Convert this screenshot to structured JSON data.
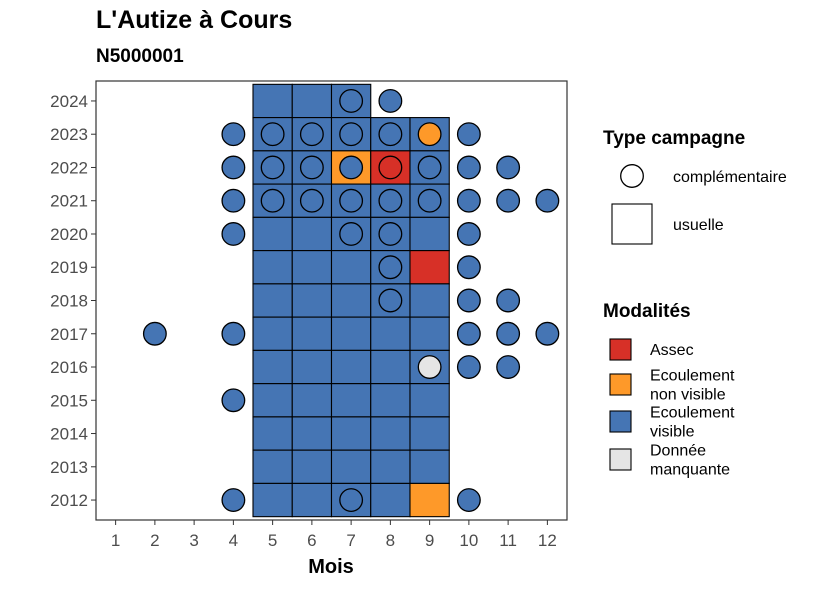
{
  "chart_data": {
    "type": "heatmap",
    "title": "L'Autize à Cours",
    "subtitle": "N5000001",
    "xlabel": "Mois",
    "ylabel": "",
    "x_ticks": [
      1,
      2,
      3,
      4,
      5,
      6,
      7,
      8,
      9,
      10,
      11,
      12
    ],
    "y_ticks": [
      2012,
      2013,
      2014,
      2015,
      2016,
      2017,
      2018,
      2019,
      2020,
      2021,
      2022,
      2023,
      2024
    ],
    "xlim": [
      0.5,
      12.5
    ],
    "ylim": [
      2011.4,
      2024.6
    ],
    "grid": false,
    "legends": {
      "shape": {
        "title": "Type campagne",
        "entries": [
          {
            "label": "complémentaire",
            "shape": "circle"
          },
          {
            "label": "usuelle",
            "shape": "square"
          }
        ]
      },
      "fill": {
        "title": "Modalités",
        "entries": [
          {
            "key": "assec",
            "label_lines": [
              "Assec"
            ],
            "color": "#d73027"
          },
          {
            "key": "ecoulement_non_visible",
            "label_lines": [
              "Ecoulement",
              "non visible"
            ],
            "color": "#fe9929"
          },
          {
            "key": "ecoulement_visible",
            "label_lines": [
              "Ecoulement",
              "visible"
            ],
            "color": "#4575b4"
          },
          {
            "key": "donnee_manquante",
            "label_lines": [
              "Donnée",
              "manquante"
            ],
            "color": "#e5e5e5"
          }
        ]
      }
    },
    "usuelle": [
      {
        "month": 5,
        "year": 2024,
        "modalite": "ecoulement_visible"
      },
      {
        "month": 6,
        "year": 2024,
        "modalite": "ecoulement_visible"
      },
      {
        "month": 7,
        "year": 2024,
        "modalite": "ecoulement_visible"
      },
      {
        "month": 5,
        "year": 2023,
        "modalite": "ecoulement_visible"
      },
      {
        "month": 6,
        "year": 2023,
        "modalite": "ecoulement_visible"
      },
      {
        "month": 7,
        "year": 2023,
        "modalite": "ecoulement_visible"
      },
      {
        "month": 8,
        "year": 2023,
        "modalite": "ecoulement_visible"
      },
      {
        "month": 9,
        "year": 2023,
        "modalite": "ecoulement_visible"
      },
      {
        "month": 5,
        "year": 2022,
        "modalite": "ecoulement_visible"
      },
      {
        "month": 6,
        "year": 2022,
        "modalite": "ecoulement_visible"
      },
      {
        "month": 7,
        "year": 2022,
        "modalite": "ecoulement_non_visible"
      },
      {
        "month": 8,
        "year": 2022,
        "modalite": "assec"
      },
      {
        "month": 9,
        "year": 2022,
        "modalite": "ecoulement_visible"
      },
      {
        "month": 5,
        "year": 2021,
        "modalite": "ecoulement_visible"
      },
      {
        "month": 6,
        "year": 2021,
        "modalite": "ecoulement_visible"
      },
      {
        "month": 7,
        "year": 2021,
        "modalite": "ecoulement_visible"
      },
      {
        "month": 8,
        "year": 2021,
        "modalite": "ecoulement_visible"
      },
      {
        "month": 9,
        "year": 2021,
        "modalite": "ecoulement_visible"
      },
      {
        "month": 5,
        "year": 2020,
        "modalite": "ecoulement_visible"
      },
      {
        "month": 6,
        "year": 2020,
        "modalite": "ecoulement_visible"
      },
      {
        "month": 7,
        "year": 2020,
        "modalite": "ecoulement_visible"
      },
      {
        "month": 8,
        "year": 2020,
        "modalite": "ecoulement_visible"
      },
      {
        "month": 9,
        "year": 2020,
        "modalite": "ecoulement_visible"
      },
      {
        "month": 5,
        "year": 2019,
        "modalite": "ecoulement_visible"
      },
      {
        "month": 6,
        "year": 2019,
        "modalite": "ecoulement_visible"
      },
      {
        "month": 7,
        "year": 2019,
        "modalite": "ecoulement_visible"
      },
      {
        "month": 8,
        "year": 2019,
        "modalite": "ecoulement_visible"
      },
      {
        "month": 9,
        "year": 2019,
        "modalite": "assec"
      },
      {
        "month": 5,
        "year": 2018,
        "modalite": "ecoulement_visible"
      },
      {
        "month": 6,
        "year": 2018,
        "modalite": "ecoulement_visible"
      },
      {
        "month": 7,
        "year": 2018,
        "modalite": "ecoulement_visible"
      },
      {
        "month": 8,
        "year": 2018,
        "modalite": "ecoulement_visible"
      },
      {
        "month": 9,
        "year": 2018,
        "modalite": "ecoulement_visible"
      },
      {
        "month": 5,
        "year": 2017,
        "modalite": "ecoulement_visible"
      },
      {
        "month": 6,
        "year": 2017,
        "modalite": "ecoulement_visible"
      },
      {
        "month": 7,
        "year": 2017,
        "modalite": "ecoulement_visible"
      },
      {
        "month": 8,
        "year": 2017,
        "modalite": "ecoulement_visible"
      },
      {
        "month": 9,
        "year": 2017,
        "modalite": "ecoulement_visible"
      },
      {
        "month": 5,
        "year": 2016,
        "modalite": "ecoulement_visible"
      },
      {
        "month": 6,
        "year": 2016,
        "modalite": "ecoulement_visible"
      },
      {
        "month": 7,
        "year": 2016,
        "modalite": "ecoulement_visible"
      },
      {
        "month": 8,
        "year": 2016,
        "modalite": "ecoulement_visible"
      },
      {
        "month": 9,
        "year": 2016,
        "modalite": "ecoulement_visible"
      },
      {
        "month": 5,
        "year": 2015,
        "modalite": "ecoulement_visible"
      },
      {
        "month": 6,
        "year": 2015,
        "modalite": "ecoulement_visible"
      },
      {
        "month": 7,
        "year": 2015,
        "modalite": "ecoulement_visible"
      },
      {
        "month": 8,
        "year": 2015,
        "modalite": "ecoulement_visible"
      },
      {
        "month": 9,
        "year": 2015,
        "modalite": "ecoulement_visible"
      },
      {
        "month": 5,
        "year": 2014,
        "modalite": "ecoulement_visible"
      },
      {
        "month": 6,
        "year": 2014,
        "modalite": "ecoulement_visible"
      },
      {
        "month": 7,
        "year": 2014,
        "modalite": "ecoulement_visible"
      },
      {
        "month": 8,
        "year": 2014,
        "modalite": "ecoulement_visible"
      },
      {
        "month": 9,
        "year": 2014,
        "modalite": "ecoulement_visible"
      },
      {
        "month": 5,
        "year": 2013,
        "modalite": "ecoulement_visible"
      },
      {
        "month": 6,
        "year": 2013,
        "modalite": "ecoulement_visible"
      },
      {
        "month": 7,
        "year": 2013,
        "modalite": "ecoulement_visible"
      },
      {
        "month": 8,
        "year": 2013,
        "modalite": "ecoulement_visible"
      },
      {
        "month": 9,
        "year": 2013,
        "modalite": "ecoulement_visible"
      },
      {
        "month": 5,
        "year": 2012,
        "modalite": "ecoulement_visible"
      },
      {
        "month": 6,
        "year": 2012,
        "modalite": "ecoulement_visible"
      },
      {
        "month": 7,
        "year": 2012,
        "modalite": "ecoulement_visible"
      },
      {
        "month": 8,
        "year": 2012,
        "modalite": "ecoulement_visible"
      },
      {
        "month": 9,
        "year": 2012,
        "modalite": "ecoulement_non_visible"
      }
    ],
    "complementaire": [
      {
        "month": 7,
        "year": 2024,
        "modalite": "ecoulement_visible"
      },
      {
        "month": 8,
        "year": 2024,
        "modalite": "ecoulement_visible"
      },
      {
        "month": 4,
        "year": 2023,
        "modalite": "ecoulement_visible"
      },
      {
        "month": 5,
        "year": 2023,
        "modalite": "ecoulement_visible"
      },
      {
        "month": 6,
        "year": 2023,
        "modalite": "ecoulement_visible"
      },
      {
        "month": 7,
        "year": 2023,
        "modalite": "ecoulement_visible"
      },
      {
        "month": 8,
        "year": 2023,
        "modalite": "ecoulement_visible"
      },
      {
        "month": 9,
        "year": 2023,
        "modalite": "ecoulement_non_visible"
      },
      {
        "month": 10,
        "year": 2023,
        "modalite": "ecoulement_visible"
      },
      {
        "month": 4,
        "year": 2022,
        "modalite": "ecoulement_visible"
      },
      {
        "month": 5,
        "year": 2022,
        "modalite": "ecoulement_visible"
      },
      {
        "month": 6,
        "year": 2022,
        "modalite": "ecoulement_visible"
      },
      {
        "month": 7,
        "year": 2022,
        "modalite": "ecoulement_visible"
      },
      {
        "month": 8,
        "year": 2022,
        "modalite": "assec"
      },
      {
        "month": 9,
        "year": 2022,
        "modalite": "ecoulement_visible"
      },
      {
        "month": 10,
        "year": 2022,
        "modalite": "ecoulement_visible"
      },
      {
        "month": 11,
        "year": 2022,
        "modalite": "ecoulement_visible"
      },
      {
        "month": 4,
        "year": 2021,
        "modalite": "ecoulement_visible"
      },
      {
        "month": 5,
        "year": 2021,
        "modalite": "ecoulement_visible"
      },
      {
        "month": 6,
        "year": 2021,
        "modalite": "ecoulement_visible"
      },
      {
        "month": 7,
        "year": 2021,
        "modalite": "ecoulement_visible"
      },
      {
        "month": 8,
        "year": 2021,
        "modalite": "ecoulement_visible"
      },
      {
        "month": 9,
        "year": 2021,
        "modalite": "ecoulement_visible"
      },
      {
        "month": 10,
        "year": 2021,
        "modalite": "ecoulement_visible"
      },
      {
        "month": 11,
        "year": 2021,
        "modalite": "ecoulement_visible"
      },
      {
        "month": 12,
        "year": 2021,
        "modalite": "ecoulement_visible"
      },
      {
        "month": 4,
        "year": 2020,
        "modalite": "ecoulement_visible"
      },
      {
        "month": 7,
        "year": 2020,
        "modalite": "ecoulement_visible"
      },
      {
        "month": 8,
        "year": 2020,
        "modalite": "ecoulement_visible"
      },
      {
        "month": 10,
        "year": 2020,
        "modalite": "ecoulement_visible"
      },
      {
        "month": 8,
        "year": 2019,
        "modalite": "ecoulement_visible"
      },
      {
        "month": 10,
        "year": 2019,
        "modalite": "ecoulement_visible"
      },
      {
        "month": 8,
        "year": 2018,
        "modalite": "ecoulement_visible"
      },
      {
        "month": 10,
        "year": 2018,
        "modalite": "ecoulement_visible"
      },
      {
        "month": 11,
        "year": 2018,
        "modalite": "ecoulement_visible"
      },
      {
        "month": 2,
        "year": 2017,
        "modalite": "ecoulement_visible"
      },
      {
        "month": 4,
        "year": 2017,
        "modalite": "ecoulement_visible"
      },
      {
        "month": 10,
        "year": 2017,
        "modalite": "ecoulement_visible"
      },
      {
        "month": 11,
        "year": 2017,
        "modalite": "ecoulement_visible"
      },
      {
        "month": 12,
        "year": 2017,
        "modalite": "ecoulement_visible"
      },
      {
        "month": 9,
        "year": 2016,
        "modalite": "donnee_manquante"
      },
      {
        "month": 10,
        "year": 2016,
        "modalite": "ecoulement_visible"
      },
      {
        "month": 11,
        "year": 2016,
        "modalite": "ecoulement_visible"
      },
      {
        "month": 4,
        "year": 2015,
        "modalite": "ecoulement_visible"
      },
      {
        "month": 4,
        "year": 2012,
        "modalite": "ecoulement_visible"
      },
      {
        "month": 7,
        "year": 2012,
        "modalite": "ecoulement_visible"
      },
      {
        "month": 10,
        "year": 2012,
        "modalite": "ecoulement_visible"
      }
    ]
  }
}
